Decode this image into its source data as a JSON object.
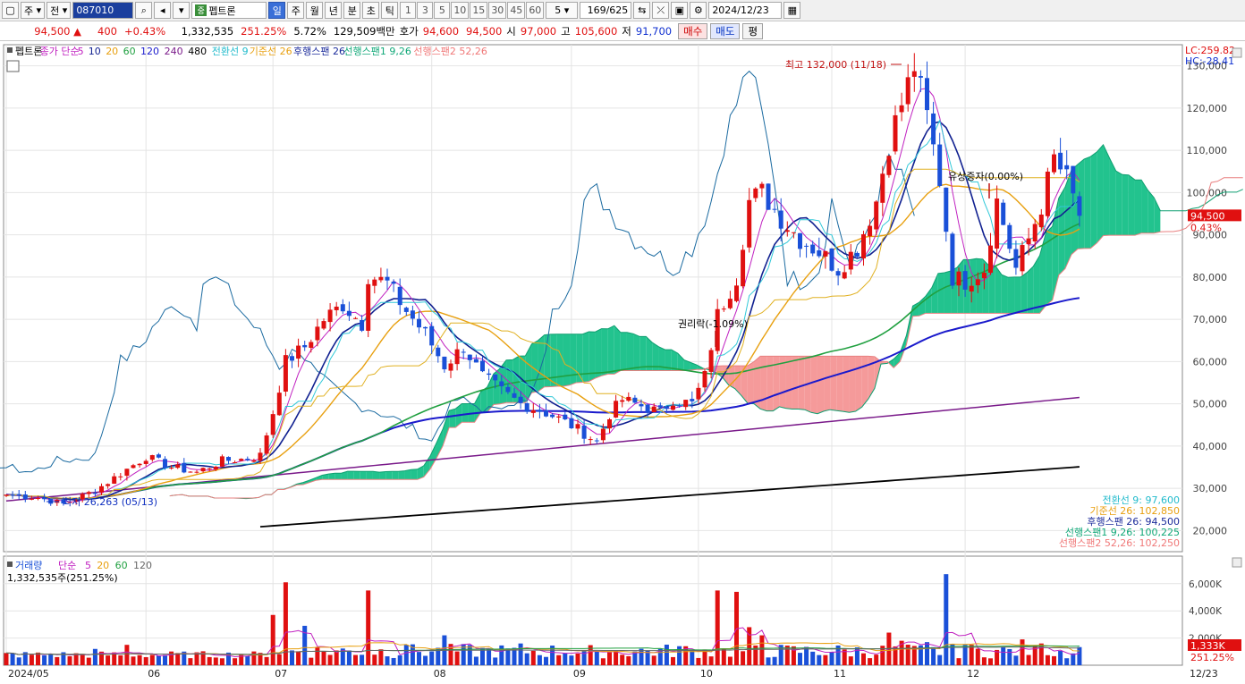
{
  "toolbar": {
    "market": "주",
    "prev": "전",
    "code": "087010",
    "name": "펩트론",
    "periods": [
      "일",
      "주",
      "월",
      "년",
      "분",
      "초",
      "틱"
    ],
    "active_period": "일",
    "nums": [
      "1",
      "3",
      "5",
      "10",
      "15",
      "30",
      "45",
      "60"
    ],
    "interval": "5",
    "count": "169/625",
    "date": "2024/12/23"
  },
  "quote": {
    "price": "94,500",
    "change": "400",
    "change_pct": "+0.43%",
    "volume": "1,332,535",
    "vol_ratio": "251.25%",
    "turnover": "5.72%",
    "amount": "129,509백만",
    "bid_label": "호가",
    "ask": "94,600",
    "bid": "94,500",
    "open_label": "시",
    "open": "97,000",
    "high_label": "고",
    "high": "105,600",
    "low_label": "저",
    "low": "91,700",
    "buy": "매수",
    "sell": "매도",
    "eval": "평"
  },
  "legend": {
    "stock": "펩트론",
    "ma_label": "종가 단순",
    "ma": [
      "5",
      "10",
      "20",
      "60",
      "120",
      "240",
      "480"
    ],
    "conv": "전환선 9",
    "base": "기준선 26",
    "lag": "후행스팬 26",
    "lead1": "선행스팬1 9,26",
    "lead2": "선행스팬2 52,26"
  },
  "vol_legend": {
    "label": "거래량",
    "ma_label": "단순",
    "ma": [
      "5",
      "20",
      "60",
      "120"
    ],
    "value": "1,332,535주(251.25%)"
  },
  "annotations": {
    "high": "최고 132,000 (11/18)",
    "low": "최저 26,263 (05/13)",
    "rights": "권리락(-1.09%)",
    "offering": "유상증자(0.00%)",
    "lc": "LC:259.82",
    "hc": "HC:-28.41"
  },
  "ichimoku_values": [
    {
      "text": "전환선 9: 97,600",
      "color": "#22bbcc"
    },
    {
      "text": "기준선 26: 102,850",
      "color": "#e8a010"
    },
    {
      "text": "후행스팬 26: 94,500",
      "color": "#1a2a9a"
    },
    {
      "text": "선행스팬1 9,26: 100,225",
      "color": "#10a878"
    },
    {
      "text": "선행스팬2 52,26: 102,250",
      "color": "#f07878"
    }
  ],
  "current_price_tag": {
    "price": "94,500",
    "pct": "0.43%"
  },
  "current_volume_tag": {
    "volume": "1,333K",
    "pct": "251.25%"
  },
  "chart_data": {
    "type": "candlestick",
    "y_axis": {
      "min": 15000,
      "max": 135000,
      "ticks": [
        "20,000",
        "30,000",
        "40,000",
        "50,000",
        "60,000",
        "70,000",
        "80,000",
        "90,000",
        "100,000",
        "110,000",
        "120,000",
        "130,000"
      ],
      "tick_values": [
        20000,
        30000,
        40000,
        50000,
        60000,
        70000,
        80000,
        90000,
        100000,
        110000,
        120000,
        130000
      ]
    },
    "vol_axis": {
      "max": 7500000,
      "ticks": [
        "2,000K",
        "4,000K",
        "6,000K"
      ],
      "tick_values": [
        2000000,
        4000000,
        6000000
      ]
    },
    "x_labels": [
      "2024/05",
      "06",
      "07",
      "08",
      "09",
      "10",
      "11",
      "12"
    ],
    "x_label_index": [
      0,
      22,
      42,
      67,
      89,
      109,
      130,
      151
    ],
    "last_date_label": "12/23",
    "key_points": [
      [
        0,
        28500
      ],
      [
        5,
        27800
      ],
      [
        9,
        26263
      ],
      [
        14,
        29500
      ],
      [
        18,
        33500
      ],
      [
        22,
        37500
      ],
      [
        26,
        35000
      ],
      [
        30,
        33800
      ],
      [
        34,
        36500
      ],
      [
        38,
        37000
      ],
      [
        40,
        37800
      ],
      [
        42,
        48000
      ],
      [
        44,
        60000
      ],
      [
        47,
        63500
      ],
      [
        50,
        70000
      ],
      [
        53,
        73500
      ],
      [
        56,
        69000
      ],
      [
        57,
        80500
      ],
      [
        60,
        78500
      ],
      [
        63,
        72000
      ],
      [
        66,
        66500
      ],
      [
        69,
        59000
      ],
      [
        72,
        63500
      ],
      [
        75,
        56500
      ],
      [
        78,
        53000
      ],
      [
        81,
        50000
      ],
      [
        84,
        48500
      ],
      [
        87,
        46500
      ],
      [
        90,
        44000
      ],
      [
        93,
        41000
      ],
      [
        95,
        47500
      ],
      [
        97,
        51000
      ],
      [
        100,
        49500
      ],
      [
        103,
        48000
      ],
      [
        105,
        51000
      ],
      [
        108,
        50000
      ],
      [
        110,
        56500
      ],
      [
        112,
        71000
      ],
      [
        115,
        80000
      ],
      [
        117,
        98000
      ],
      [
        119,
        100000
      ],
      [
        122,
        94000
      ],
      [
        125,
        89000
      ],
      [
        128,
        86000
      ],
      [
        131,
        82000
      ],
      [
        134,
        87000
      ],
      [
        137,
        98000
      ],
      [
        139,
        112000
      ],
      [
        141,
        121000
      ],
      [
        143,
        130000
      ],
      [
        145,
        118000
      ],
      [
        147,
        103000
      ],
      [
        149,
        80000
      ],
      [
        151,
        79000
      ],
      [
        154,
        82000
      ],
      [
        156,
        98000
      ],
      [
        159,
        82000
      ],
      [
        161,
        89000
      ],
      [
        163,
        97000
      ],
      [
        165,
        108000
      ],
      [
        167,
        103000
      ],
      [
        169,
        94500
      ]
    ],
    "volume_spikes": [
      [
        0,
        900000
      ],
      [
        14,
        1200000
      ],
      [
        19,
        1500000
      ],
      [
        42,
        3700000
      ],
      [
        44,
        6100000
      ],
      [
        47,
        2900000
      ],
      [
        57,
        5500000
      ],
      [
        63,
        1500000
      ],
      [
        69,
        2200000
      ],
      [
        81,
        1600000
      ],
      [
        93,
        1000000
      ],
      [
        106,
        1400000
      ],
      [
        112,
        5500000
      ],
      [
        115,
        5400000
      ],
      [
        117,
        2800000
      ],
      [
        119,
        2200000
      ],
      [
        139,
        2400000
      ],
      [
        141,
        1800000
      ],
      [
        145,
        1700000
      ],
      [
        148,
        6700000
      ],
      [
        151,
        1500000
      ],
      [
        160,
        1900000
      ],
      [
        163,
        1600000
      ],
      [
        169,
        1333000
      ]
    ]
  }
}
